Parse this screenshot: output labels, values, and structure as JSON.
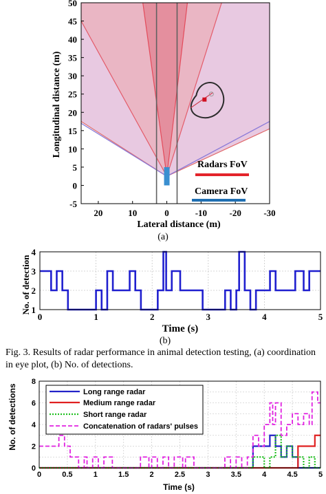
{
  "caption": "Fig. 3. Results of radar performance in animal detection testing, (a) coordination in eye plot, (b) No. of detections.",
  "chart_data": [
    {
      "type": "area",
      "panel_label": "(a)",
      "xlabel": "Lateral distance (m)",
      "ylabel": "Longitudinal distance (m)",
      "xlim": [
        25,
        -30
      ],
      "ylim": [
        -5,
        50
      ],
      "x_ticks": [
        "20",
        "10",
        "0",
        "-10",
        "-20",
        "-30"
      ],
      "x_tick_values": [
        20,
        10,
        0,
        -10,
        -20,
        -30
      ],
      "y_ticks": [
        "-5",
        "0",
        "5",
        "10",
        "15",
        "20",
        "25",
        "30",
        "35",
        "40",
        "45",
        "50"
      ],
      "y_tick_values": [
        -5,
        0,
        5,
        10,
        15,
        20,
        25,
        30,
        35,
        40,
        45,
        50
      ],
      "sensor_origin": [
        0,
        2.5
      ],
      "radar_fov_wide": {
        "left_edge": [
          25,
          17.5
        ],
        "right_edge": [
          -30,
          15.5
        ]
      },
      "radar_fov_mid": {
        "left_edge": [
          25,
          45
        ],
        "right_edge": [
          -16,
          50
        ]
      },
      "radar_fov_narrow": {
        "left_edge": [
          7,
          50
        ],
        "right_edge": [
          -6,
          50
        ]
      },
      "camera_fov": {
        "left_edge": [
          25,
          17
        ],
        "right_edge": [
          -30,
          17.5
        ]
      },
      "lane_lines_x": [
        3,
        -3
      ],
      "vehicle": {
        "x": 0,
        "y_from": 0,
        "y_to": 5,
        "color": "#3a8fd0"
      },
      "detection": {
        "x": -11,
        "y": 23.5
      },
      "legend": [
        {
          "label": "Radars FoV",
          "color": "#e3242b"
        },
        {
          "label": "Camera FoV",
          "color": "#1f6fb2"
        }
      ]
    },
    {
      "type": "line",
      "panel_label": "(b)",
      "xlabel": "Time (s)",
      "ylabel": "No. of detection",
      "xlim": [
        0,
        5
      ],
      "ylim": [
        1,
        4
      ],
      "x_ticks": [
        "0",
        "1",
        "2",
        "3",
        "4",
        "5"
      ],
      "y_ticks": [
        "1",
        "2",
        "3",
        "4"
      ],
      "series": [
        {
          "color": "#1f1fcf",
          "step_x": [
            0,
            0.2,
            0.3,
            0.4,
            0.5,
            1.0,
            1.1,
            1.2,
            1.3,
            1.4,
            1.6,
            1.7,
            1.8,
            2.1,
            2.2,
            2.25,
            2.35,
            2.5,
            2.6,
            2.8,
            2.9,
            3.3,
            3.4,
            3.5,
            3.55,
            3.65,
            3.75,
            3.85,
            4.0,
            4.1,
            4.2,
            4.45,
            4.55,
            4.7,
            4.8,
            5.0
          ],
          "step_y": [
            3,
            2,
            3,
            2,
            1,
            2,
            1,
            3,
            2,
            2,
            3,
            2,
            1,
            2,
            4,
            2,
            3,
            2,
            2,
            2,
            1,
            2,
            1,
            2,
            4,
            2,
            1,
            2,
            2,
            3,
            2,
            2,
            3,
            2,
            3,
            3
          ]
        }
      ]
    },
    {
      "type": "line",
      "xlabel": "Time (s)",
      "ylabel": "No. of detections",
      "xlim": [
        0,
        5
      ],
      "ylim": [
        0,
        8
      ],
      "x_ticks": [
        "0",
        "0.5",
        "1",
        "1.5",
        "2",
        "2.5",
        "3",
        "3.5",
        "4",
        "4.5",
        "5"
      ],
      "y_ticks": [
        "0",
        "2",
        "4",
        "6",
        "8"
      ],
      "legend_position": "top-left",
      "series": [
        {
          "name": "Long range radar",
          "color": "#2323c8",
          "style": "solid",
          "step_x": [
            0,
            3.8,
            4.1,
            4.2,
            4.3,
            4.4,
            4.5,
            4.6,
            5.0
          ],
          "step_y": [
            0,
            2,
            3,
            2,
            1,
            2,
            1,
            0,
            0
          ]
        },
        {
          "name": "Medium range radar",
          "color": "#e02020",
          "style": "solid",
          "step_x": [
            0,
            4.6,
            4.9,
            5.0
          ],
          "step_y": [
            0,
            2,
            3,
            3
          ]
        },
        {
          "name": "Short range radar",
          "color": "#20c020",
          "style": "dotted",
          "step_x": [
            0,
            3.8,
            4.0,
            4.1,
            4.2,
            4.3,
            4.4,
            4.5,
            4.7,
            4.8,
            4.9,
            5.0
          ],
          "step_y": [
            0,
            1,
            0,
            1,
            3,
            1,
            2,
            1,
            0,
            1,
            0,
            0
          ]
        },
        {
          "name": "Concatenation of radars' pulses",
          "color": "#e020e0",
          "style": "dashed",
          "step_x": [
            0,
            0.25,
            0.35,
            0.45,
            0.55,
            0.7,
            0.8,
            0.85,
            0.95,
            1.05,
            1.15,
            1.3,
            1.8,
            1.95,
            2.0,
            2.1,
            2.2,
            2.3,
            2.4,
            2.55,
            2.6,
            2.75,
            3.3,
            3.4,
            3.5,
            3.6,
            3.7,
            3.8,
            3.9,
            4.0,
            4.1,
            4.15,
            4.2,
            4.3,
            4.4,
            4.5,
            4.6,
            4.7,
            4.8,
            4.85,
            4.95,
            5.0
          ],
          "step_y": [
            2,
            2,
            3,
            2,
            1,
            0,
            1,
            0,
            1,
            0,
            1,
            0,
            1,
            0,
            1,
            0,
            1,
            0,
            1,
            0,
            1,
            0,
            1,
            0,
            1,
            0,
            1,
            3,
            2,
            4,
            6,
            4,
            6,
            3,
            4,
            5,
            4,
            5,
            4,
            7,
            6,
            6
          ]
        }
      ]
    }
  ]
}
